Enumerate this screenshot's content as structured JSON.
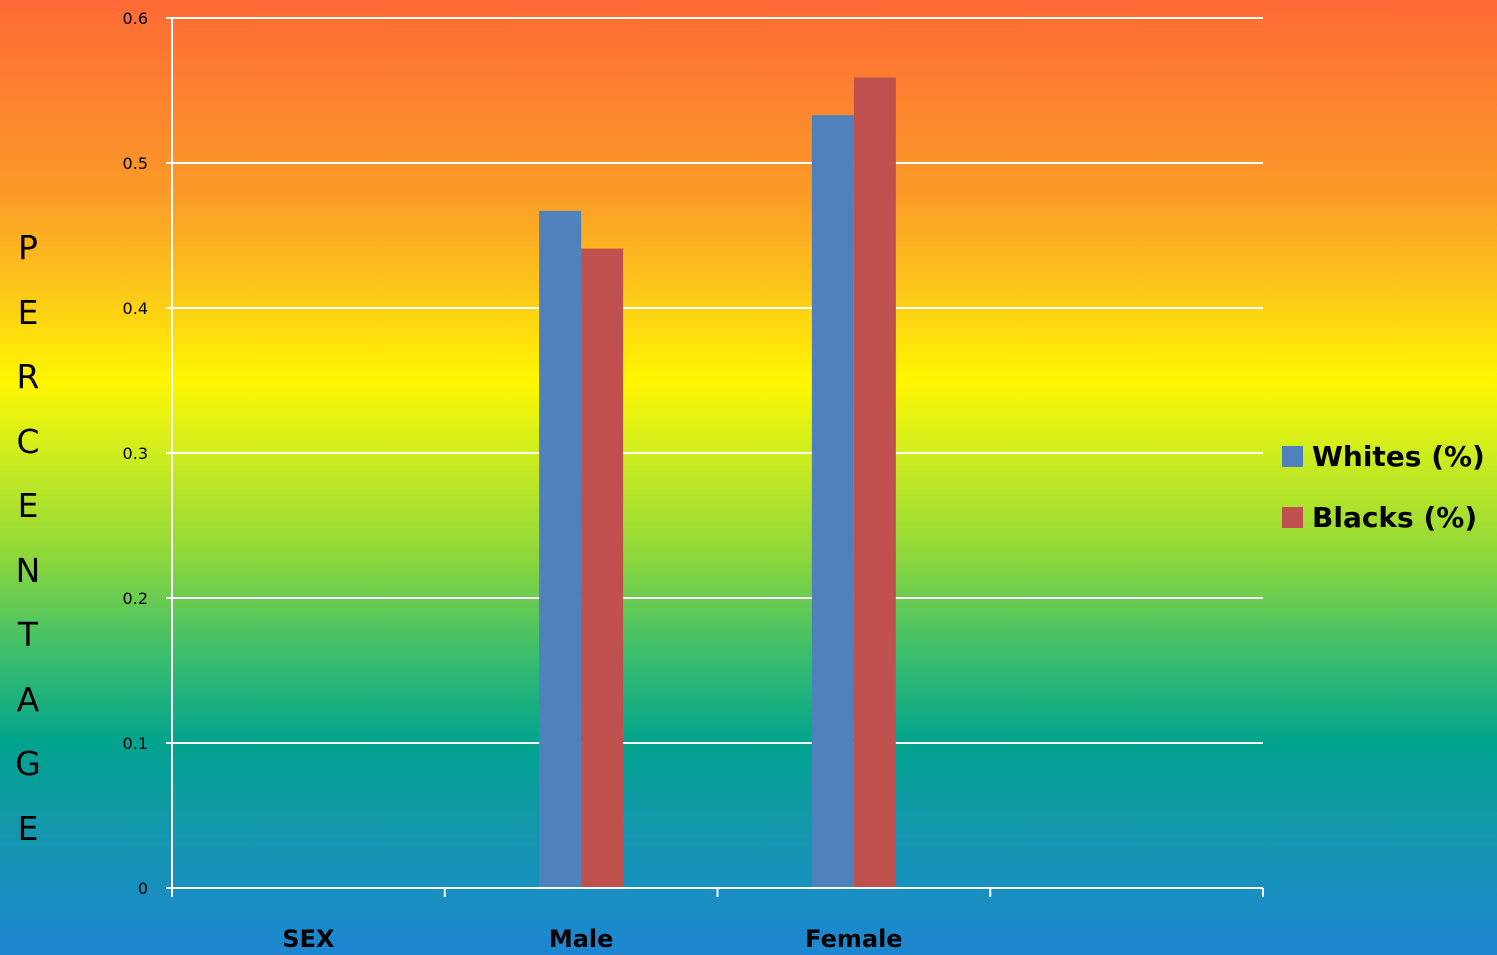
{
  "chart_data": {
    "type": "bar",
    "categories": [
      "SEX",
      "Male",
      "Female",
      ""
    ],
    "series": [
      {
        "name": "Whites (%)",
        "color": "#4f81bd",
        "values": [
          null,
          0.467,
          0.533,
          null
        ]
      },
      {
        "name": "Blacks (%)",
        "color": "#c0504d",
        "values": [
          null,
          0.441,
          0.559,
          null
        ]
      }
    ],
    "ylabel": "PERCENTAGE",
    "ylim": [
      0,
      0.6
    ],
    "yticks": [
      "0",
      "0.1",
      "0.2",
      "0.3",
      "0.4",
      "0.5",
      "0.6"
    ],
    "grid": true,
    "legend_position": "right"
  },
  "legend": {
    "whites_label": "Whites (%)",
    "blacks_label": "Blacks (%)"
  }
}
